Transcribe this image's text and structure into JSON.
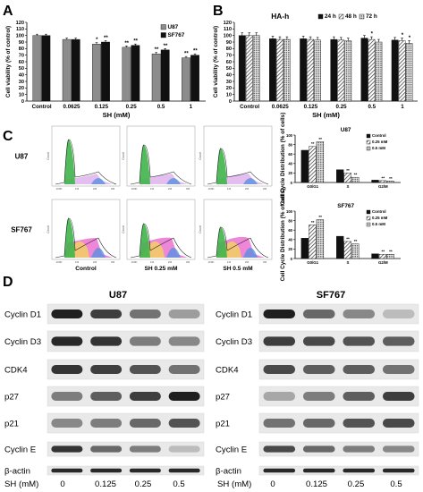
{
  "panel_labels": [
    "A",
    "B",
    "C",
    "D"
  ],
  "chart_data": [
    {
      "type": "bar",
      "panel": "A",
      "title": "",
      "xlabel": "SH (mM)",
      "ylabel": "Cell viability (% of control)",
      "ylim": [
        0,
        120
      ],
      "yticks": [
        "0",
        "10",
        "20",
        "30",
        "40",
        "50",
        "60",
        "70",
        "80",
        "90",
        "100",
        "110",
        "120"
      ],
      "categories": [
        "Control",
        "0.0625",
        "0.125",
        "0.25",
        "0.5",
        "1"
      ],
      "legend_position": "top-right",
      "series": [
        {
          "name": "U87",
          "color": "#8c8c8c",
          "values": [
            100,
            94,
            87,
            82,
            72,
            66
          ],
          "errors": [
            2,
            2,
            2,
            2,
            2,
            2
          ],
          "marks": [
            "",
            "",
            "*",
            "**",
            "**",
            "**"
          ]
        },
        {
          "name": "SF767",
          "color": "#111111",
          "values": [
            100,
            94,
            90,
            85,
            78,
            70
          ],
          "errors": [
            2,
            2,
            2,
            2,
            2,
            2
          ],
          "marks": [
            "",
            "",
            "**",
            "**",
            "**",
            "**"
          ]
        }
      ]
    },
    {
      "type": "bar",
      "panel": "B",
      "title": "HA-h",
      "xlabel": "SH (mM)",
      "ylabel": "Cell viability (% of control)",
      "ylim": [
        0,
        120
      ],
      "yticks": [
        "0",
        "10",
        "20",
        "30",
        "40",
        "50",
        "60",
        "70",
        "80",
        "90",
        "100",
        "110",
        "120"
      ],
      "categories": [
        "Control",
        "0.0625",
        "0.125",
        "0.25",
        "0.5",
        "1"
      ],
      "legend_position": "top-right",
      "series": [
        {
          "name": "24 h",
          "color": "#111111",
          "pattern": "solid",
          "values": [
            100,
            95,
            95,
            94,
            96,
            93
          ],
          "errors": [
            4,
            4,
            4,
            4,
            4,
            4
          ],
          "marks": [
            "",
            "",
            "",
            "",
            "",
            ""
          ]
        },
        {
          "name": "48 h",
          "color": "#888888",
          "pattern": "hatch",
          "values": [
            100,
            94,
            94,
            93,
            94,
            92
          ],
          "errors": [
            4,
            4,
            4,
            4,
            4,
            4
          ],
          "marks": [
            "",
            "",
            "",
            "",
            "*",
            "*"
          ]
        },
        {
          "name": "72 h",
          "color": "#cccccc",
          "pattern": "dots",
          "values": [
            100,
            94,
            93,
            92,
            90,
            88
          ],
          "errors": [
            4,
            4,
            4,
            4,
            4,
            4
          ],
          "marks": [
            "",
            "",
            "",
            "",
            "",
            "*"
          ]
        }
      ]
    },
    {
      "type": "bar",
      "panel": "C-U87",
      "title": "U87",
      "xlabel": "",
      "ylabel": "Cell Cycle Distribution (% of cells)",
      "ylim": [
        0,
        100
      ],
      "yticks": [
        "0",
        "20",
        "40",
        "60",
        "80",
        "100"
      ],
      "categories": [
        "G0/G1",
        "S",
        "G2/M"
      ],
      "legend_position": "top-right",
      "series": [
        {
          "name": "Control",
          "color": "#111111",
          "pattern": "solid",
          "values": [
            68,
            27,
            5
          ],
          "marks": [
            "",
            "",
            ""
          ]
        },
        {
          "name": "0.25 mM",
          "color": "#888888",
          "pattern": "hatch",
          "values": [
            76,
            20,
            4
          ],
          "marks": [
            "**",
            "**",
            "**"
          ]
        },
        {
          "name": "0.5 mM",
          "color": "#999999",
          "pattern": "dots",
          "values": [
            86,
            11,
            3
          ],
          "marks": [
            "**",
            "**",
            "**"
          ]
        }
      ]
    },
    {
      "type": "bar",
      "panel": "C-SF767",
      "title": "SF767",
      "xlabel": "",
      "ylabel": "Cell Cycle Distribution (% of cells)",
      "ylim": [
        0,
        100
      ],
      "yticks": [
        "0",
        "20",
        "40",
        "60",
        "80",
        "100"
      ],
      "categories": [
        "G0/G1",
        "S",
        "G2/M"
      ],
      "legend_position": "top-right",
      "series": [
        {
          "name": "Control",
          "color": "#111111",
          "pattern": "solid",
          "values": [
            43,
            47,
            10
          ],
          "marks": [
            "",
            "",
            ""
          ]
        },
        {
          "name": "0.25 mM",
          "color": "#888888",
          "pattern": "hatch",
          "values": [
            71,
            36,
            9
          ],
          "marks": [
            "**",
            "**",
            "**"
          ]
        },
        {
          "name": "0.5 mM",
          "color": "#999999",
          "pattern": "dots",
          "values": [
            82,
            31,
            9
          ],
          "marks": [
            "**",
            "**",
            "**"
          ]
        }
      ]
    }
  ],
  "flow": {
    "row_labels": [
      "U87",
      "SF767"
    ],
    "col_labels": [
      "Control",
      "SH 0.25 mM",
      "SH 0.5 mM"
    ],
    "axis_ticks": [
      "100K",
      "1M",
      "2M",
      "3M"
    ],
    "y_axis_label": "Count"
  },
  "western": {
    "titles": [
      "U87",
      "SF767"
    ],
    "proteins": [
      "Cyclin D1",
      "Cyclin D3",
      "CDK4",
      "p27",
      "p21",
      "Cyclin E",
      "β-actin"
    ],
    "dose_label": "SH (mM)",
    "doses": [
      "0",
      "0.125",
      "0.25",
      "0.5"
    ],
    "intensity_u87": [
      [
        0.95,
        0.8,
        0.55,
        0.35
      ],
      [
        0.9,
        0.85,
        0.5,
        0.45
      ],
      [
        0.85,
        0.8,
        0.7,
        0.55
      ],
      [
        0.5,
        0.65,
        0.8,
        0.95
      ],
      [
        0.45,
        0.5,
        0.6,
        0.7
      ],
      [
        0.85,
        0.6,
        0.5,
        0.2
      ],
      [
        0.9,
        0.9,
        0.9,
        0.9
      ]
    ],
    "intensity_sf767": [
      [
        0.95,
        0.6,
        0.45,
        0.2
      ],
      [
        0.8,
        0.75,
        0.7,
        0.65
      ],
      [
        0.75,
        0.65,
        0.65,
        0.55
      ],
      [
        0.3,
        0.5,
        0.65,
        0.8
      ],
      [
        0.55,
        0.6,
        0.7,
        0.75
      ],
      [
        0.75,
        0.6,
        0.5,
        0.45
      ],
      [
        0.9,
        0.9,
        0.9,
        0.9
      ]
    ]
  }
}
